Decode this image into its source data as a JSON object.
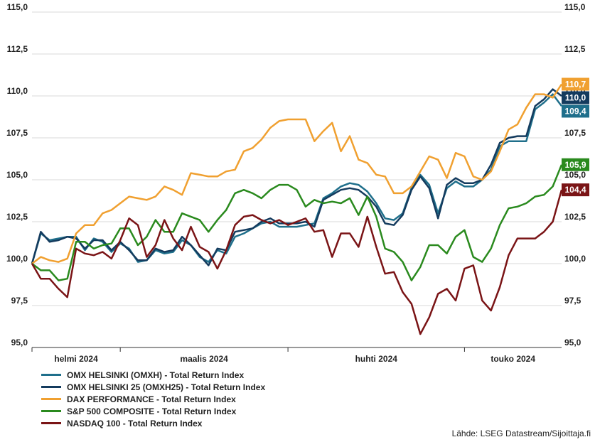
{
  "chart_data": {
    "type": "line",
    "yticks": [
      "115,0",
      "112,5",
      "110,0",
      "107,5",
      "105,0",
      "102,5",
      "100,0",
      "97,5",
      "95,0"
    ],
    "ylim": [
      95,
      115
    ],
    "x_month_labels": [
      "helmi 2024",
      "maalis 2024",
      "huhti 2024",
      "touko 2024"
    ],
    "source": "Lähde: LSEG Datastream/Sijoittaja.fi",
    "series": [
      {
        "name": "OMX HELSINKI (OMXH) - Total Return Index",
        "color": "#1f6f8b",
        "end_label": "109,4",
        "values": [
          100.0,
          101.8,
          101.4,
          101.5,
          101.6,
          101.6,
          100.8,
          101.5,
          101.3,
          100.7,
          101.2,
          100.9,
          100.1,
          100.2,
          100.8,
          100.6,
          100.7,
          101.4,
          101.1,
          100.4,
          100.1,
          100.8,
          100.6,
          101.6,
          101.8,
          102.1,
          102.4,
          102.5,
          102.2,
          102.2,
          102.2,
          102.3,
          102.4,
          103.9,
          104.2,
          104.6,
          104.8,
          104.7,
          104.3,
          103.6,
          102.7,
          102.6,
          103.0,
          104.5,
          105.3,
          104.7,
          103.0,
          104.5,
          104.9,
          104.6,
          104.6,
          105.0,
          105.6,
          107.0,
          107.3,
          107.3,
          107.3,
          109.2,
          109.6,
          110.1,
          109.4
        ]
      },
      {
        "name": "OMX HELSINKI 25 (OMXH25) - Total Return Index",
        "color": "#143b5e",
        "end_label": "110,0",
        "values": [
          100.0,
          101.9,
          101.3,
          101.4,
          101.6,
          101.5,
          100.9,
          101.4,
          101.4,
          100.8,
          101.3,
          100.8,
          100.2,
          100.2,
          100.9,
          100.7,
          100.8,
          101.6,
          101.1,
          100.5,
          99.9,
          100.9,
          100.8,
          101.9,
          102.0,
          102.1,
          102.5,
          102.7,
          102.4,
          102.4,
          102.4,
          102.5,
          102.2,
          103.8,
          104.1,
          104.4,
          104.5,
          104.4,
          104.0,
          103.4,
          102.4,
          102.3,
          102.9,
          104.4,
          105.2,
          104.5,
          102.7,
          104.7,
          105.1,
          104.8,
          104.8,
          105.0,
          105.9,
          107.2,
          107.5,
          107.6,
          107.6,
          109.4,
          109.8,
          110.4,
          110.0
        ]
      },
      {
        "name": "DAX PERFORMANCE - Total Return Index",
        "color": "#f0a030",
        "end_label": "110,7",
        "values": [
          100.0,
          100.4,
          100.2,
          100.1,
          100.3,
          101.8,
          102.3,
          102.3,
          103.0,
          103.2,
          103.6,
          104.0,
          103.9,
          103.8,
          104.0,
          104.6,
          104.4,
          104.1,
          105.4,
          105.3,
          105.2,
          105.2,
          105.5,
          105.6,
          106.7,
          106.9,
          107.4,
          108.1,
          108.5,
          108.6,
          108.6,
          108.6,
          107.3,
          107.9,
          108.4,
          106.7,
          107.6,
          106.2,
          106.0,
          105.3,
          105.2,
          104.2,
          104.2,
          104.6,
          105.5,
          106.4,
          106.2,
          105.1,
          106.6,
          106.4,
          105.2,
          105.0,
          105.5,
          106.7,
          108.0,
          108.3,
          109.3,
          110.1,
          110.1,
          109.9,
          110.7
        ]
      },
      {
        "name": "S&P 500 COMPOSITE - Total Return Index",
        "color": "#2a8a1e",
        "end_label": "105,9",
        "values": [
          100.0,
          99.6,
          99.6,
          99.0,
          99.1,
          101.3,
          101.3,
          100.9,
          101.1,
          101.2,
          102.1,
          102.1,
          101.1,
          101.6,
          102.6,
          101.9,
          101.9,
          103.0,
          102.8,
          102.6,
          101.9,
          102.6,
          103.2,
          104.2,
          104.4,
          104.2,
          103.9,
          104.4,
          104.7,
          104.7,
          104.4,
          103.4,
          103.8,
          103.6,
          103.7,
          103.6,
          103.9,
          102.9,
          104.0,
          102.8,
          100.9,
          100.7,
          100.1,
          99.0,
          99.8,
          101.1,
          101.1,
          100.6,
          101.6,
          102.0,
          100.4,
          100.1,
          100.9,
          102.3,
          103.3,
          103.4,
          103.6,
          104.0,
          104.1,
          104.6,
          105.9
        ]
      },
      {
        "name": "NASDAQ 100 - Total Return Index",
        "color": "#7a1416",
        "end_label": "104,4",
        "values": [
          100.0,
          99.1,
          99.1,
          98.5,
          98.0,
          100.9,
          100.6,
          100.5,
          100.7,
          100.3,
          101.4,
          102.7,
          102.3,
          100.4,
          101.1,
          102.6,
          101.5,
          100.8,
          102.2,
          101.0,
          100.7,
          99.7,
          100.8,
          102.3,
          102.8,
          102.9,
          102.6,
          102.4,
          102.6,
          102.3,
          102.5,
          102.7,
          101.9,
          102.0,
          100.4,
          101.8,
          101.8,
          101.0,
          102.8,
          101.0,
          99.4,
          99.5,
          98.3,
          97.6,
          95.8,
          96.8,
          98.2,
          98.5,
          97.8,
          99.7,
          99.9,
          97.8,
          97.2,
          98.6,
          100.5,
          101.5,
          101.5,
          101.5,
          101.9,
          102.5,
          104.4
        ]
      }
    ]
  }
}
